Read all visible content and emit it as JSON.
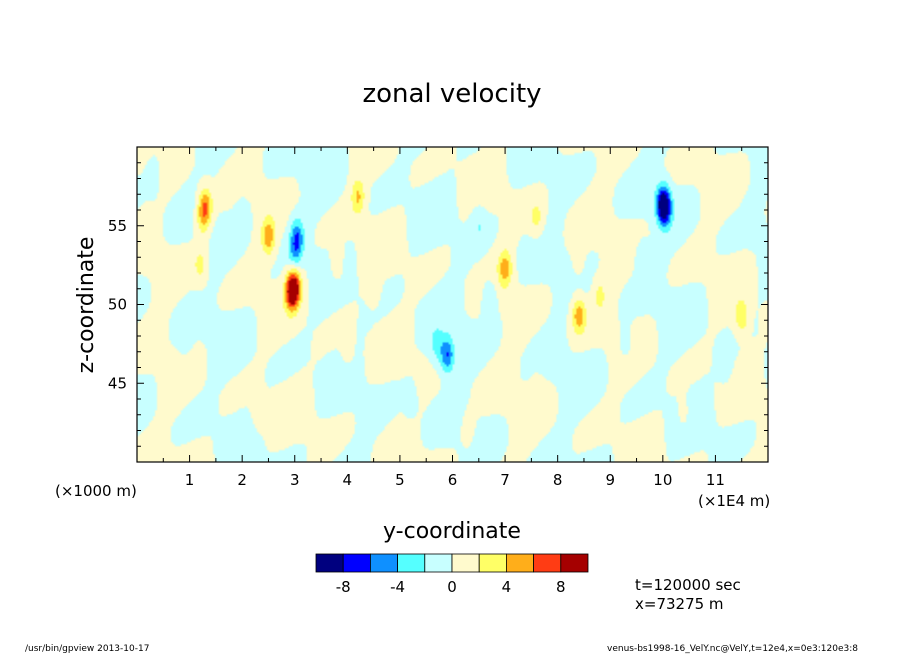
{
  "chart_data": {
    "type": "heatmap",
    "title": "zonal velocity",
    "xlabel": "y-coordinate",
    "ylabel": "z-coordinate",
    "x_offset_label": "(×1000 m)",
    "x_scale_label": "(×1E4 m)",
    "xlim": [
      0,
      12
    ],
    "ylim": [
      40,
      60
    ],
    "x_ticks": [
      "1",
      "2",
      "3",
      "4",
      "5",
      "6",
      "7",
      "8",
      "9",
      "10",
      "11"
    ],
    "y_ticks": [
      "45",
      "50",
      "55"
    ],
    "colorbar": {
      "colors": [
        "#00007f",
        "#0000ff",
        "#0f90ff",
        "#55ffff",
        "#c8ffff",
        "#fffacd",
        "#ffff66",
        "#ffae1a",
        "#ff3c14",
        "#a50000"
      ],
      "labels": [
        "-8",
        "-4",
        "0",
        "4",
        "8"
      ]
    },
    "field_blobs": [
      {
        "x": 1.25,
        "z": 55.5,
        "v": 3.2
      },
      {
        "x": 1.3,
        "z": 56.3,
        "v": 5.2
      },
      {
        "x": 1.2,
        "z": 52.5,
        "v": 2.6
      },
      {
        "x": 2.5,
        "z": 54.3,
        "v": 5.1
      },
      {
        "x": 2.95,
        "z": 50.8,
        "v": 9.0
      },
      {
        "x": 3.0,
        "z": 51.2,
        "v": 4.5
      },
      {
        "x": 3.05,
        "z": 54.3,
        "v": -5.0
      },
      {
        "x": 3.0,
        "z": 53.3,
        "v": -3.0
      },
      {
        "x": 2.0,
        "z": 55.6,
        "v": -1.3
      },
      {
        "x": 4.2,
        "z": 56.8,
        "v": 4.2
      },
      {
        "x": 3.8,
        "z": 52.5,
        "v": 1.8
      },
      {
        "x": 4.5,
        "z": 51.0,
        "v": 1.2
      },
      {
        "x": 5.9,
        "z": 46.8,
        "v": -6.0
      },
      {
        "x": 5.7,
        "z": 47.4,
        "v": -2.5
      },
      {
        "x": 7.0,
        "z": 52.3,
        "v": 5.0
      },
      {
        "x": 6.5,
        "z": 55.0,
        "v": -1.8
      },
      {
        "x": 6.7,
        "z": 50.4,
        "v": -2.5
      },
      {
        "x": 7.6,
        "z": 55.5,
        "v": 2.6
      },
      {
        "x": 8.4,
        "z": 49.3,
        "v": 5.2
      },
      {
        "x": 8.8,
        "z": 50.6,
        "v": 2.3
      },
      {
        "x": 10.0,
        "z": 56.4,
        "v": -8.5
      },
      {
        "x": 10.05,
        "z": 56.0,
        "v": -4.0
      },
      {
        "x": 11.5,
        "z": 49.2,
        "v": 3.6
      },
      {
        "x": 11.7,
        "z": 55.5,
        "v": -1.5
      },
      {
        "x": 0.3,
        "z": 58.0,
        "v": -1.2
      },
      {
        "x": 0.9,
        "z": 48.0,
        "v": -1.4
      },
      {
        "x": 2.3,
        "z": 43.0,
        "v": 1.0
      },
      {
        "x": 4.0,
        "z": 47.0,
        "v": 1.1
      },
      {
        "x": 5.2,
        "z": 44.0,
        "v": -1.2
      },
      {
        "x": 6.3,
        "z": 42.0,
        "v": 1.1
      },
      {
        "x": 7.6,
        "z": 44.5,
        "v": 1.1
      },
      {
        "x": 9.3,
        "z": 47.5,
        "v": -1.3
      },
      {
        "x": 10.4,
        "z": 43.0,
        "v": 1.2
      },
      {
        "x": 11.2,
        "z": 46.0,
        "v": -1.1
      },
      {
        "x": 8.4,
        "z": 52.5,
        "v": 1.0
      },
      {
        "x": 9.6,
        "z": 53.0,
        "v": -1.4
      }
    ]
  },
  "annotations": {
    "time": "t=120000 sec",
    "position": "x=73275 m"
  },
  "footer": {
    "left": "/usr/bin/gpview   2013-10-17",
    "right": "venus-bs1998-16_VelY.nc@VelY,t=12e4,x=0e3:120e3:8"
  }
}
